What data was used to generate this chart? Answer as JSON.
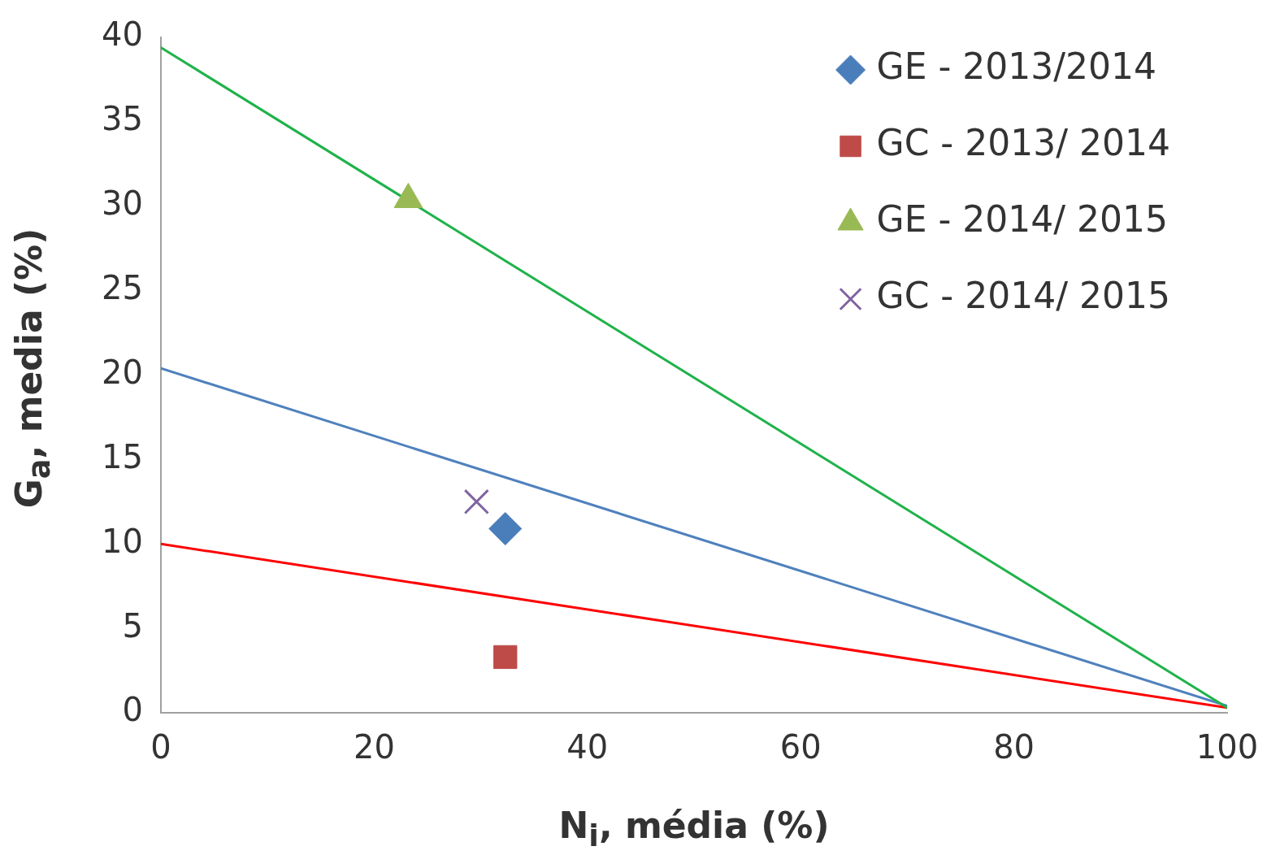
{
  "chart_data": {
    "type": "scatter",
    "xlabel": "N$_{i}$, média (%)",
    "ylabel": "G$_{a}$, media (%)",
    "xlim": [
      0,
      100
    ],
    "ylim": [
      0,
      40
    ],
    "xticks": [
      0,
      20,
      40,
      60,
      80,
      100
    ],
    "yticks": [
      0,
      5,
      10,
      15,
      20,
      25,
      30,
      35,
      40
    ],
    "grid": false,
    "legend": "top right",
    "series": [
      {
        "name": "GE - 2013/2014",
        "color": "#4a7ebb",
        "marker": "diamond",
        "x": [
          32.3
        ],
        "values": [
          10.9
        ]
      },
      {
        "name": "GC - 2013/ 2014",
        "color": "#be4b48",
        "marker": "square",
        "x": [
          32.3
        ],
        "values": [
          3.3
        ]
      },
      {
        "name": "GE - 2014/ 2015",
        "color": "#98b954",
        "marker": "triangle",
        "x": [
          23.2
        ],
        "values": [
          30.4
        ]
      },
      {
        "name": "GC - 2014/ 2015",
        "color": "#8064a2",
        "marker": "cross",
        "x": [
          29.6
        ],
        "values": [
          12.5
        ]
      },
      {
        "type": "line",
        "color": "#1fb24a",
        "marker": "none",
        "x": [
          0,
          100
        ],
        "values": [
          39.4,
          0.3
        ]
      },
      {
        "type": "line",
        "color": "#4f81bd",
        "marker": "none",
        "x": [
          0,
          100
        ],
        "values": [
          20.4,
          0.4
        ]
      },
      {
        "type": "line",
        "color": "#ff0000",
        "marker": "none",
        "x": [
          0,
          100
        ],
        "values": [
          10,
          0.3
        ]
      }
    ]
  }
}
